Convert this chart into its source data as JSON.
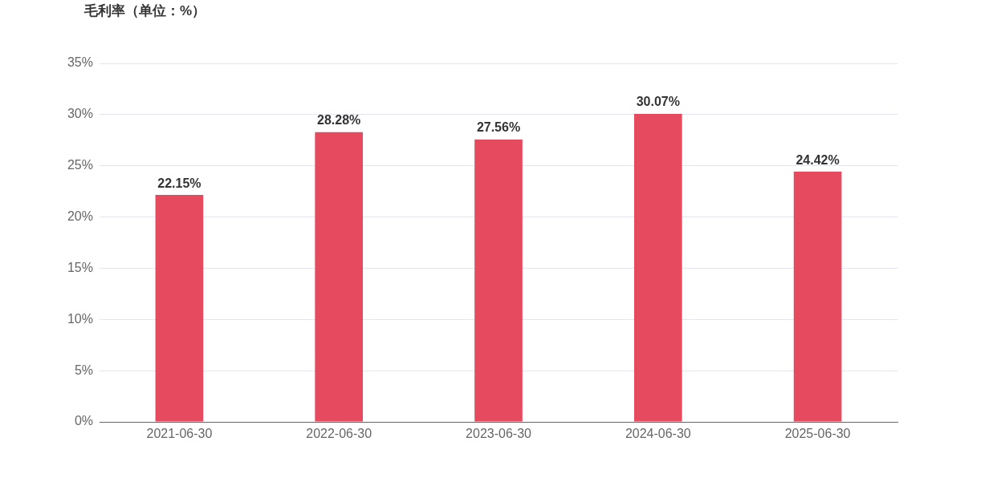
{
  "chart_data": {
    "type": "bar",
    "title": "毛利率（单位：%）",
    "categories": [
      "2021-06-30",
      "2022-06-30",
      "2023-06-30",
      "2024-06-30",
      "2025-06-30"
    ],
    "values": [
      22.15,
      28.28,
      27.56,
      30.07,
      24.42
    ],
    "value_labels": [
      "22.15%",
      "28.28%",
      "27.56%",
      "30.07%",
      "24.42%"
    ],
    "color": "#e64a5e",
    "ylim": [
      0,
      35
    ],
    "yticks": [
      {
        "value": 0,
        "label": "0%"
      },
      {
        "value": 5,
        "label": "5%"
      },
      {
        "value": 10,
        "label": "10%"
      },
      {
        "value": 15,
        "label": "15%"
      },
      {
        "value": 20,
        "label": "20%"
      },
      {
        "value": 25,
        "label": "25%"
      },
      {
        "value": 30,
        "label": "30%"
      },
      {
        "value": 35,
        "label": "35%"
      }
    ],
    "grid": "y"
  }
}
